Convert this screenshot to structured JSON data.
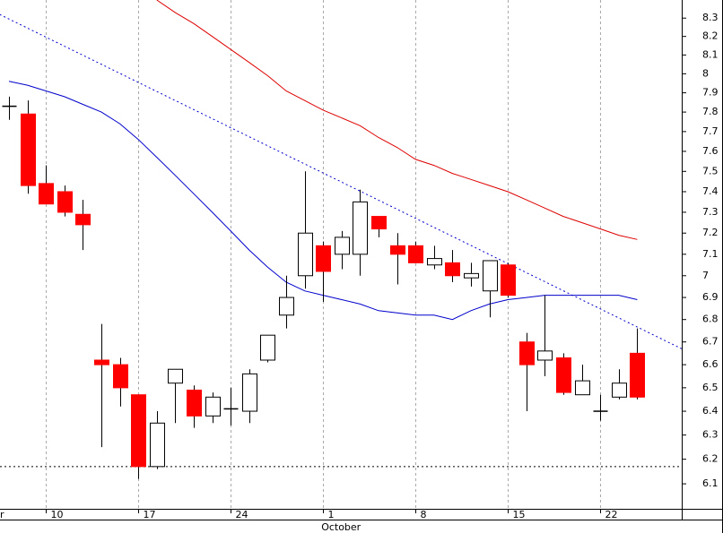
{
  "chart_data": {
    "type": "candlestick",
    "categories": [
      null,
      null,
      "10",
      null,
      null,
      null,
      null,
      "17",
      null,
      null,
      null,
      null,
      "24",
      null,
      null,
      null,
      null,
      "1",
      null,
      null,
      null,
      null,
      "8",
      null,
      null,
      null,
      null,
      "15",
      null,
      null,
      null,
      null,
      "22",
      null,
      null
    ],
    "open": [
      7.83,
      7.79,
      7.44,
      7.4,
      7.29,
      6.62,
      6.6,
      6.47,
      6.17,
      6.52,
      6.49,
      6.38,
      6.41,
      6.4,
      6.62,
      6.82,
      7.0,
      7.14,
      7.1,
      7.1,
      7.28,
      7.14,
      7.14,
      7.05,
      7.06,
      6.99,
      6.93,
      7.05,
      6.7,
      6.62,
      6.63,
      6.47,
      6.4,
      6.46,
      6.65
    ],
    "high": [
      7.88,
      7.86,
      7.53,
      7.43,
      7.36,
      6.78,
      6.63,
      6.47,
      6.4,
      6.58,
      6.51,
      6.48,
      6.5,
      6.58,
      6.73,
      7.0,
      7.5,
      7.16,
      7.21,
      7.41,
      7.28,
      7.2,
      7.16,
      7.14,
      7.12,
      7.06,
      7.07,
      7.06,
      6.74,
      6.91,
      6.65,
      6.6,
      6.47,
      6.58,
      6.76
    ],
    "low": [
      7.76,
      7.39,
      7.34,
      7.28,
      7.12,
      6.25,
      6.42,
      6.12,
      6.16,
      6.35,
      6.33,
      6.35,
      6.34,
      6.35,
      6.61,
      6.76,
      6.94,
      6.88,
      7.03,
      7.0,
      7.18,
      6.96,
      7.06,
      7.03,
      6.97,
      6.95,
      6.81,
      6.9,
      6.4,
      6.55,
      6.47,
      6.47,
      6.36,
      6.45,
      6.45
    ],
    "close": [
      7.83,
      7.43,
      7.34,
      7.3,
      7.24,
      6.6,
      6.5,
      6.17,
      6.35,
      6.58,
      6.38,
      6.46,
      6.41,
      6.56,
      6.73,
      6.9,
      7.2,
      7.02,
      7.18,
      7.35,
      7.22,
      7.1,
      7.06,
      7.08,
      7.0,
      7.01,
      7.07,
      6.91,
      6.6,
      6.66,
      6.48,
      6.53,
      6.4,
      6.52,
      6.46
    ],
    "up_color": "#ffffff",
    "down_color": "#ff0000",
    "overlays": [
      {
        "color": "#0000cc",
        "values": [
          7.96,
          7.94,
          7.91,
          7.88,
          7.84,
          7.8,
          7.74,
          7.66,
          7.57,
          7.48,
          7.39,
          7.3,
          7.21,
          7.12,
          7.04,
          6.97,
          6.93,
          6.91,
          6.89,
          6.87,
          6.84,
          6.83,
          6.82,
          6.82,
          6.8,
          6.84,
          6.87,
          6.89,
          6.9,
          6.91,
          6.91,
          6.91,
          6.91,
          6.91,
          6.89
        ]
      },
      {
        "color": "#dd0000",
        "values": [
          null,
          null,
          null,
          null,
          null,
          null,
          null,
          null,
          8.4,
          8.33,
          8.27,
          8.2,
          8.13,
          8.06,
          7.99,
          7.91,
          7.86,
          7.81,
          7.77,
          7.73,
          7.67,
          7.62,
          7.56,
          7.53,
          7.49,
          7.46,
          7.43,
          7.4,
          7.36,
          7.32,
          7.28,
          7.25,
          7.22,
          7.19,
          7.17
        ]
      }
    ],
    "trendline": {
      "color": "#0000cc",
      "x": [
        -0.5,
        36.4
      ],
      "values": [
        8.32,
        6.67
      ]
    },
    "support": 6.17,
    "ylim": [
      6.0,
      8.4
    ],
    "yticks": [
      6.1,
      6.2,
      6.3,
      6.4,
      6.5,
      6.6,
      6.7,
      6.8,
      6.9,
      7.0,
      7.1,
      7.2,
      7.3,
      7.4,
      7.5,
      7.6,
      7.7,
      7.8,
      7.9,
      8.0,
      8.1,
      8.2,
      8.3
    ],
    "log_scale": true,
    "grid": "x",
    "edge_label": "r",
    "month_label": "October"
  }
}
